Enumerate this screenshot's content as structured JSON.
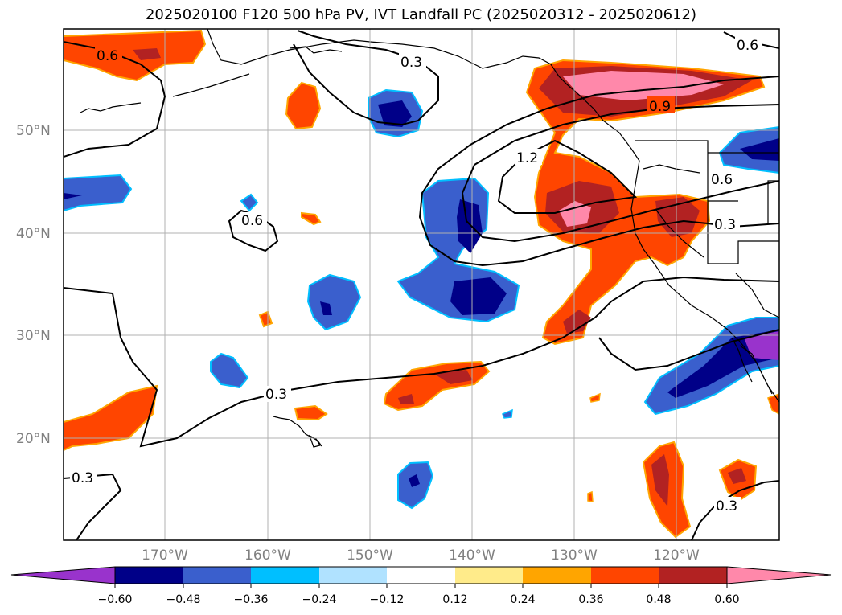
{
  "title": "2025020100 F120 500 hPa PV, IVT Landfall PC (2025020312 - 2025020612)",
  "lon_ticks": [
    "170°W",
    "160°W",
    "150°W",
    "140°W",
    "130°W",
    "120°W"
  ],
  "lat_ticks": [
    "50°N",
    "40°N",
    "30°N",
    "20°N"
  ],
  "contour_labels": [
    "0.6",
    "0.3",
    "0.9",
    "1.2",
    "0.6",
    "0.6",
    "0.3",
    "0.3",
    "0.3",
    "0.3",
    "0.6"
  ],
  "colorbar": {
    "tick_labels": [
      "−0.60",
      "−0.48",
      "−0.36",
      "−0.24",
      "−0.12",
      "0.12",
      "0.24",
      "0.36",
      "0.48",
      "0.60"
    ],
    "colors": [
      "#9933cc",
      "#000088",
      "#3a5fcd",
      "#00bfff",
      "#b0e2ff",
      "#ffffff",
      "#ffeb8a",
      "#ffa500",
      "#ff4500",
      "#b22222",
      "#ff88aa"
    ]
  },
  "colors": {
    "grid": "#b0b0b0",
    "tick_text": "#808080"
  }
}
